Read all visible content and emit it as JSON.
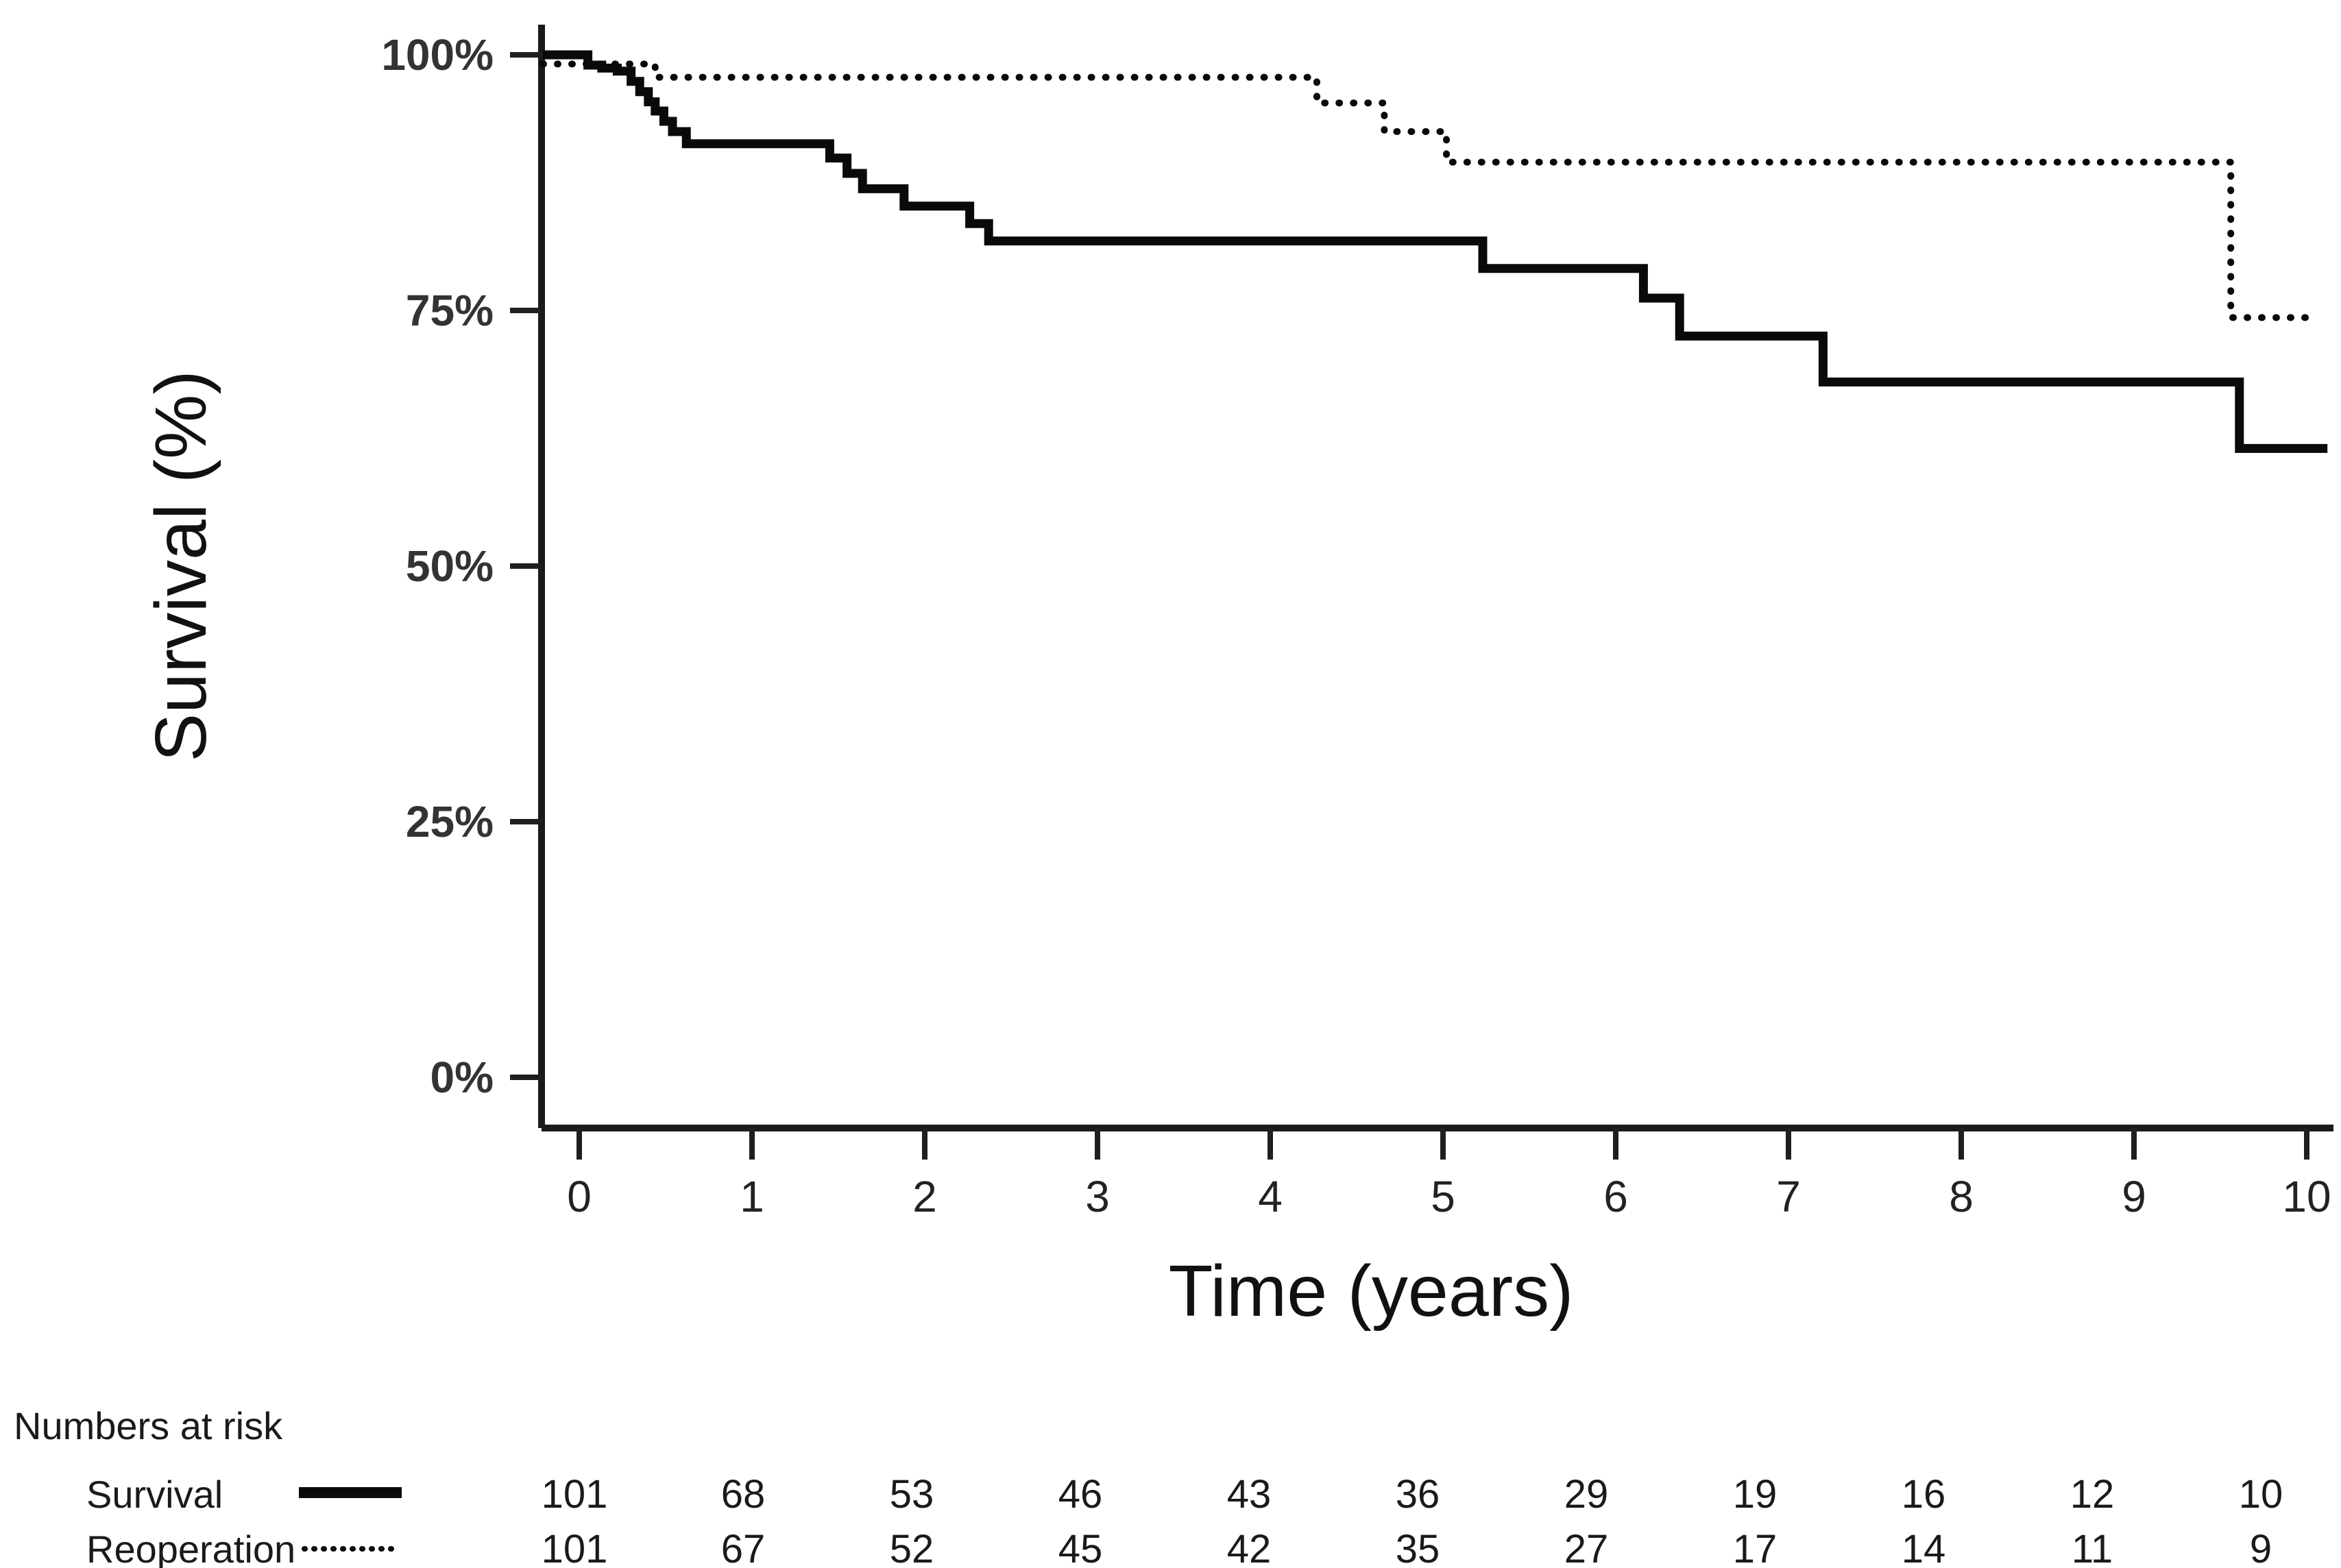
{
  "chart_data": {
    "type": "line",
    "subtype": "kaplan-meier-step",
    "title": "",
    "xlabel": "Time (years)",
    "ylabel": "Survival (%)",
    "xlim": [
      -0.22,
      10.2
    ],
    "ylim": [
      0,
      100
    ],
    "grid": false,
    "x_ticks": [
      0,
      1,
      2,
      3,
      4,
      5,
      6,
      7,
      8,
      9,
      10
    ],
    "x_tick_labels": [
      "0",
      "1",
      "2",
      "3",
      "4",
      "5",
      "6",
      "7",
      "8",
      "9",
      "10"
    ],
    "y_ticks": [
      100,
      75,
      50,
      25,
      0
    ],
    "y_tick_labels": [
      "100%",
      "75%",
      "50%",
      "25%",
      "0%"
    ],
    "series": [
      {
        "name": "Survival",
        "style": "solid",
        "steps": [
          [
            -0.21,
            100
          ],
          [
            0.05,
            99.0
          ],
          [
            0.13,
            98.7
          ],
          [
            0.22,
            98.4
          ],
          [
            0.3,
            97.4
          ],
          [
            0.35,
            96.4
          ],
          [
            0.4,
            95.4
          ],
          [
            0.44,
            94.5
          ],
          [
            0.49,
            93.5
          ],
          [
            0.54,
            92.5
          ],
          [
            0.62,
            91.3
          ],
          [
            1.45,
            89.9
          ],
          [
            1.55,
            88.4
          ],
          [
            1.64,
            86.9
          ],
          [
            1.88,
            85.2
          ],
          [
            2.26,
            83.5
          ],
          [
            2.37,
            81.8
          ],
          [
            5.23,
            79.1
          ],
          [
            6.16,
            76.2
          ],
          [
            6.37,
            72.5
          ],
          [
            7.2,
            68.0
          ],
          [
            9.61,
            61.5
          ]
        ],
        "t_end": 10.12
      },
      {
        "name": "Reoperation",
        "style": "dotted",
        "steps": [
          [
            -0.21,
            99.1
          ],
          [
            0.44,
            97.8
          ],
          [
            4.27,
            95.3
          ],
          [
            4.66,
            92.5
          ],
          [
            5.02,
            89.5
          ],
          [
            9.56,
            74.3
          ]
        ],
        "t_end": 10.07
      }
    ]
  },
  "risk_table": {
    "header": "Numbers at risk",
    "time_points": [
      0,
      1,
      2,
      3,
      4,
      5,
      6,
      7,
      8,
      9,
      10
    ],
    "rows": [
      {
        "label": "Survival",
        "line_style": "solid",
        "values": [
          "101",
          "68",
          "53",
          "46",
          "43",
          "36",
          "29",
          "19",
          "16",
          "12",
          "10"
        ]
      },
      {
        "label": "Reoperation",
        "line_style": "dotted",
        "values": [
          "101",
          "67",
          "52",
          "45",
          "42",
          "35",
          "27",
          "17",
          "14",
          "11",
          "9"
        ]
      }
    ]
  },
  "colors": {
    "background": "#ffffff",
    "curve": "#0a0a0a",
    "axis": "#1a1a1a",
    "tick_text": "#333333",
    "title_text": "#111111"
  }
}
